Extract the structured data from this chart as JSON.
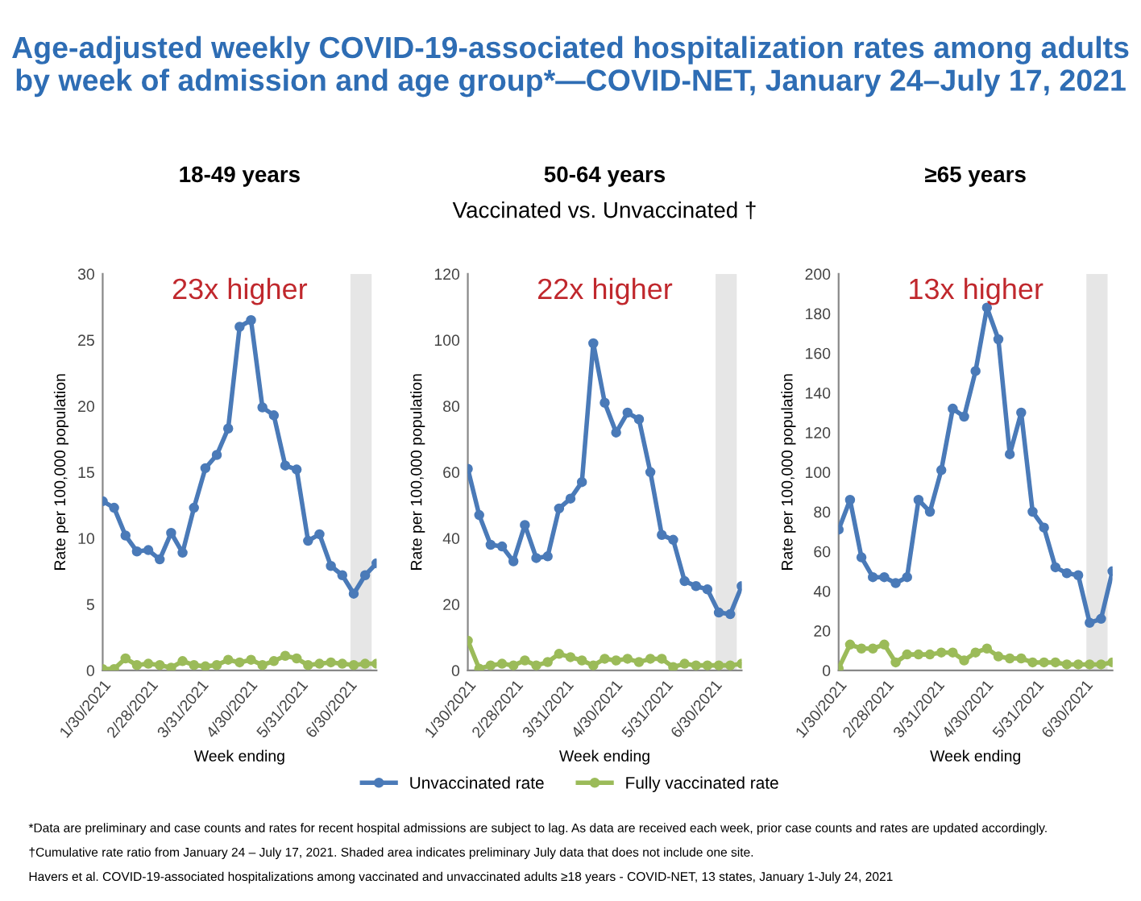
{
  "chart_data": [
    {
      "type": "line",
      "title": "18-49 years",
      "xlabel": "Week ending",
      "ylabel": "Rate per 100,000 population",
      "annotations": [
        "23x higher",
        "Age-adjusted weekly COVID-19-associated hospitalization rates among adults\nby week of admission and age group*—COVID-NET, January 24–July 17, 2021",
        "*Data are preliminary and case counts and rates for recent hospital admissions are subject to lag. As data are received each week, prior case counts and rates are updated accordingly.",
        "†Cumulative rate ratio from January 24 – July 17, 2021. Shaded area indicates preliminary July data that does not include one site.",
        "Havers et al. COVID-19-associated hospitalizations among vaccinated and unvaccinated adults ≥18 years - COVID-NET, 13 states, January 1-July 24, 2021"
      ],
      "x": [
        "2021-01-30",
        "2021-02-06",
        "2021-02-13",
        "2021-02-20",
        "2021-02-27",
        "2021-03-06",
        "2021-03-13",
        "2021-03-20",
        "2021-03-27",
        "2021-04-03",
        "2021-04-10",
        "2021-04-17",
        "2021-04-24",
        "2021-05-01",
        "2021-05-08",
        "2021-05-15",
        "2021-05-22",
        "2021-05-29",
        "2021-06-05",
        "2021-06-12",
        "2021-06-19",
        "2021-06-26",
        "2021-07-03",
        "2021-07-10",
        "2021-07-17"
      ],
      "series": [
        {
          "color": "#4a7ab8",
          "values": [
            12.8,
            12.3,
            10.2,
            9.0,
            9.1,
            8.4,
            10.4,
            8.9,
            12.3,
            15.3,
            16.3,
            18.3,
            26.0,
            26.5,
            19.9,
            19.3,
            15.5,
            15.2,
            9.8,
            10.3,
            7.9,
            7.2,
            5.8,
            7.2,
            8.1
          ]
        },
        {
          "color": "#9bbb59",
          "values": [
            0.1,
            0.1,
            0.9,
            0.4,
            0.5,
            0.4,
            0.2,
            0.7,
            0.4,
            0.3,
            0.4,
            0.8,
            0.6,
            0.8,
            0.4,
            0.7,
            1.1,
            0.9,
            0.4,
            0.5,
            0.6,
            0.5,
            0.4,
            0.5,
            0.5
          ]
        }
      ],
      "xlim": [
        "2021-01-30",
        "2021-07-17"
      ],
      "xticks": [
        {
          "value": "2021-01-30",
          "label": "1/30/2021"
        },
        {
          "value": "2021-02-28",
          "label": "2/28/2021"
        },
        {
          "value": "2021-03-31",
          "label": "3/31/2021"
        },
        {
          "value": "2021-04-30",
          "label": "4/30/2021"
        },
        {
          "value": "2021-05-31",
          "label": "5/31/2021"
        },
        {
          "value": "2021-06-30",
          "label": "6/30/2021"
        }
      ],
      "ylim": [
        0,
        30
      ],
      "yticks": [
        0,
        5,
        10,
        15,
        20,
        25,
        30
      ],
      "bands": [
        {
          "axis": "x",
          "from": "2021-07-01",
          "to": "2021-07-14",
          "color": "#e6e6e6"
        }
      ],
      "marker": "circle",
      "line_style": "solid",
      "grid": false,
      "legend": false
    },
    {
      "type": "line",
      "title": "50-64 years",
      "subtitle": "Vaccinated vs. Unvaccinated †",
      "xlabel": "Week ending",
      "ylabel": "Rate per 100,000 population",
      "annotations": [
        "22x higher"
      ],
      "x": [
        "2021-01-30",
        "2021-02-06",
        "2021-02-13",
        "2021-02-20",
        "2021-02-27",
        "2021-03-06",
        "2021-03-13",
        "2021-03-20",
        "2021-03-27",
        "2021-04-03",
        "2021-04-10",
        "2021-04-17",
        "2021-04-24",
        "2021-05-01",
        "2021-05-08",
        "2021-05-15",
        "2021-05-22",
        "2021-05-29",
        "2021-06-05",
        "2021-06-12",
        "2021-06-19",
        "2021-06-26",
        "2021-07-03",
        "2021-07-10",
        "2021-07-17"
      ],
      "series": [
        {
          "name": "Unvaccinated rate",
          "color": "#4a7ab8",
          "values": [
            61,
            47,
            38,
            37.5,
            33,
            44,
            34,
            34.5,
            49,
            52,
            57,
            99,
            81,
            72,
            78,
            76,
            60,
            41,
            39.5,
            27,
            25.5,
            24.5,
            17.5,
            17,
            25.5
          ]
        },
        {
          "name": "Fully vaccinated rate",
          "color": "#9bbb59",
          "values": [
            9,
            0.5,
            1.5,
            2,
            1.5,
            3,
            1.5,
            2.5,
            5,
            4,
            3,
            1.5,
            3.5,
            3,
            3.5,
            2.5,
            3.5,
            3.5,
            1,
            2,
            1.5,
            1.5,
            1.5,
            1.5,
            2
          ]
        }
      ],
      "xlim": [
        "2021-01-30",
        "2021-07-17"
      ],
      "xticks": [
        {
          "value": "2021-01-30",
          "label": "1/30/2021"
        },
        {
          "value": "2021-02-28",
          "label": "2/28/2021"
        },
        {
          "value": "2021-03-31",
          "label": "3/31/2021"
        },
        {
          "value": "2021-04-30",
          "label": "4/30/2021"
        },
        {
          "value": "2021-05-31",
          "label": "5/31/2021"
        },
        {
          "value": "2021-06-30",
          "label": "6/30/2021"
        }
      ],
      "ylim": [
        0,
        120
      ],
      "yticks": [
        0,
        20,
        40,
        60,
        80,
        100,
        120
      ],
      "bands": [
        {
          "axis": "x",
          "from": "2021-07-01",
          "to": "2021-07-14",
          "color": "#e6e6e6"
        }
      ],
      "marker": "circle",
      "line_style": "solid",
      "grid": false,
      "legend": "bottom"
    },
    {
      "type": "line",
      "title": "≥65 years",
      "xlabel": "Week ending",
      "ylabel": "Rate per 100,000 population",
      "annotations": [
        "13x higher"
      ],
      "x": [
        "2021-01-30",
        "2021-02-06",
        "2021-02-13",
        "2021-02-20",
        "2021-02-27",
        "2021-03-06",
        "2021-03-13",
        "2021-03-20",
        "2021-03-27",
        "2021-04-03",
        "2021-04-10",
        "2021-04-17",
        "2021-04-24",
        "2021-05-01",
        "2021-05-08",
        "2021-05-15",
        "2021-05-22",
        "2021-05-29",
        "2021-06-05",
        "2021-06-12",
        "2021-06-19",
        "2021-06-26",
        "2021-07-03",
        "2021-07-10",
        "2021-07-17"
      ],
      "series": [
        {
          "color": "#4a7ab8",
          "values": [
            71,
            86,
            57,
            47,
            47,
            44,
            47,
            86,
            80,
            101,
            132,
            128,
            151,
            183,
            167,
            109,
            130,
            80,
            72,
            52,
            49,
            48,
            24,
            26,
            50
          ]
        },
        {
          "color": "#9bbb59",
          "values": [
            1,
            13,
            11,
            11,
            13,
            4,
            8,
            8,
            8,
            9,
            9,
            5,
            9,
            11,
            7,
            6,
            6,
            4,
            4,
            4,
            3,
            3,
            3,
            3,
            4
          ]
        }
      ],
      "xlim": [
        "2021-01-30",
        "2021-07-17"
      ],
      "xticks": [
        {
          "value": "2021-01-30",
          "label": "1/30/2021"
        },
        {
          "value": "2021-02-28",
          "label": "2/28/2021"
        },
        {
          "value": "2021-03-31",
          "label": "3/31/2021"
        },
        {
          "value": "2021-04-30",
          "label": "4/30/2021"
        },
        {
          "value": "2021-05-31",
          "label": "5/31/2021"
        },
        {
          "value": "2021-06-30",
          "label": "6/30/2021"
        }
      ],
      "ylim": [
        0,
        200
      ],
      "yticks": [
        0,
        20,
        40,
        60,
        80,
        100,
        120,
        140,
        160,
        180,
        200
      ],
      "bands": [
        {
          "axis": "x",
          "from": "2021-07-01",
          "to": "2021-07-14",
          "color": "#e6e6e6"
        }
      ],
      "marker": "circle",
      "line_style": "solid",
      "grid": false,
      "legend": false
    }
  ]
}
